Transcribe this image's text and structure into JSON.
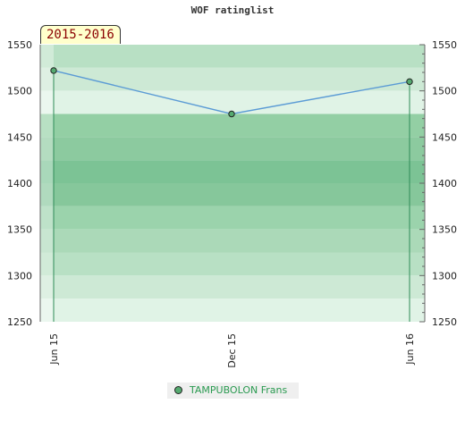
{
  "title": "WOF ratinglist",
  "period_badge": "2015-2016",
  "legend": {
    "label": "TAMPUBOLON Frans"
  },
  "colors": {
    "line": "#5b9bd5",
    "marker": "#55aa70",
    "plot_bands": [
      "#b8e0c4",
      "#cde9d5",
      "#e0f3e6",
      "#93cfa4",
      "#8cca9f",
      "#7cc395",
      "#86c79b",
      "#9bd3ac",
      "#abd9b8"
    ]
  },
  "chart_data": {
    "type": "line",
    "title": "WOF ratinglist",
    "categories": [
      "Jun 15",
      "Dec 15",
      "Jun 16"
    ],
    "series": [
      {
        "name": "TAMPUBOLON Frans",
        "values": [
          1522,
          1475,
          1510
        ]
      }
    ],
    "ylim": [
      1250,
      1550
    ],
    "yticks": [
      1250,
      1300,
      1350,
      1400,
      1450,
      1500,
      1550
    ],
    "grid": true,
    "legend_position": "bottom"
  }
}
